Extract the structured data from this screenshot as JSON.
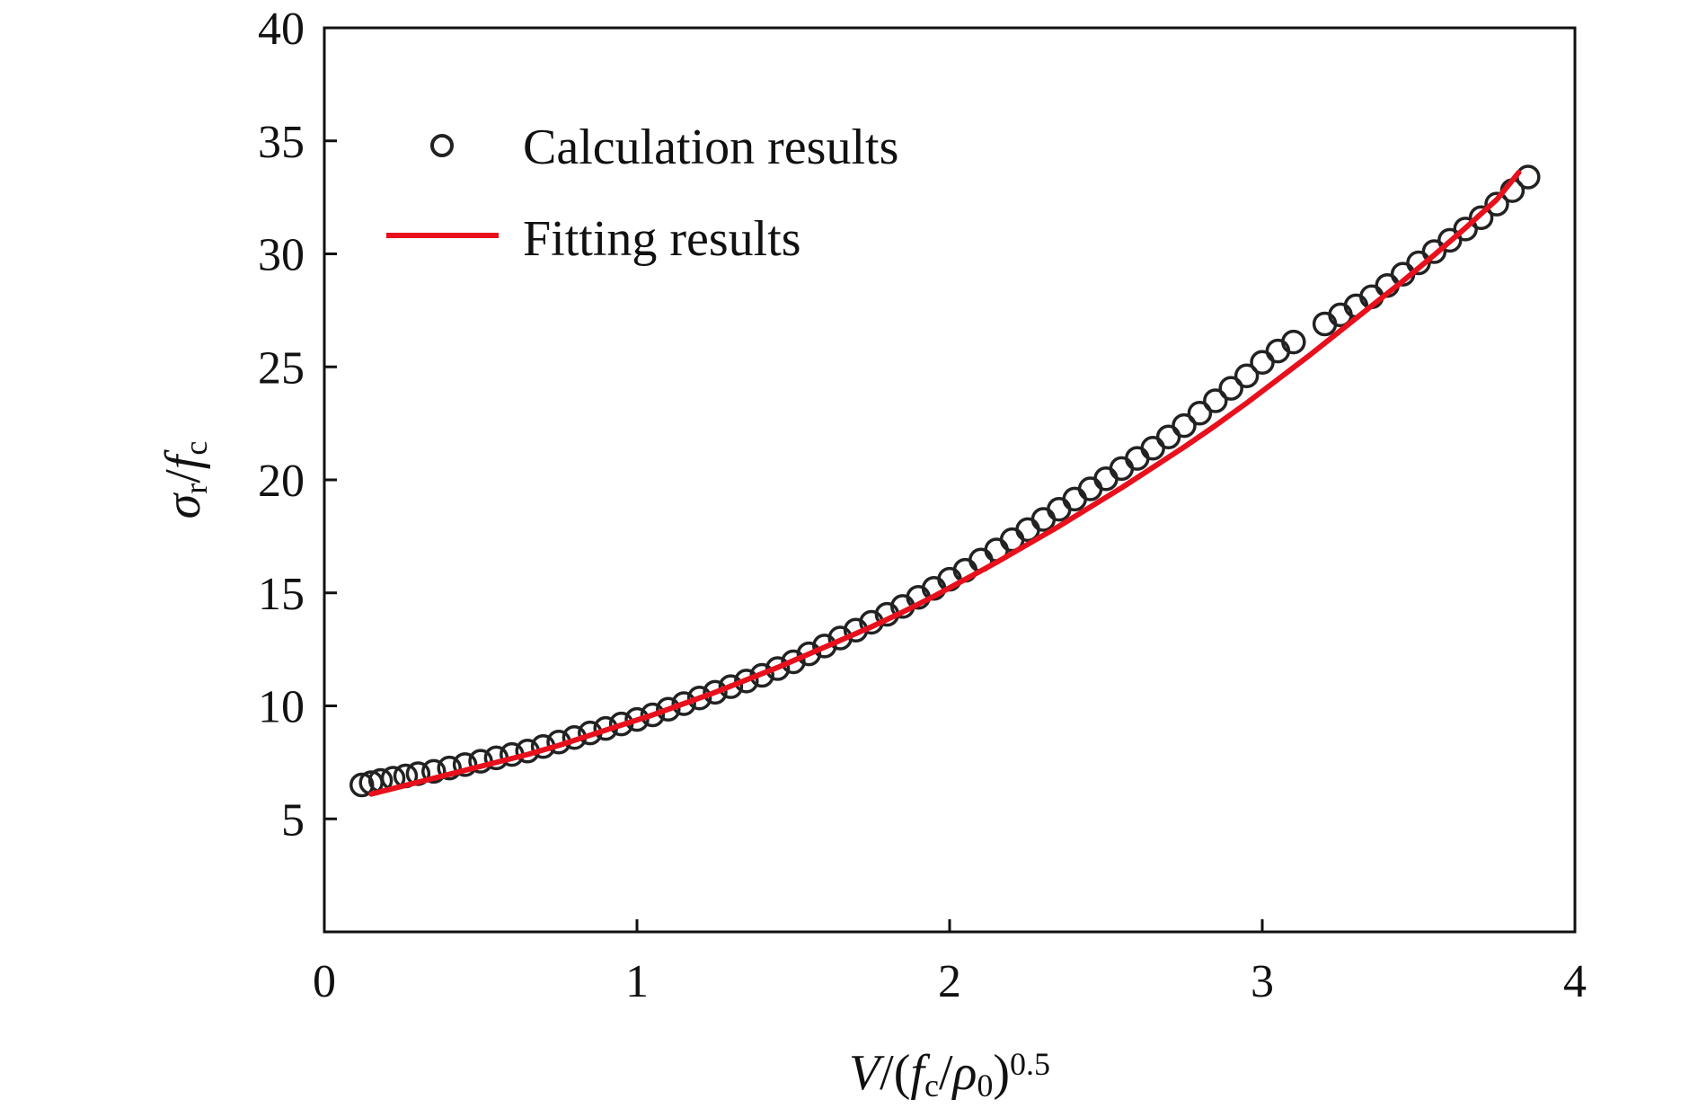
{
  "chart_data": {
    "type": "scatter",
    "title": "",
    "xlabel": {
      "parts": [
        {
          "text": "V",
          "style": "italic"
        },
        {
          "text": "/(",
          "style": "normal"
        },
        {
          "text": "f",
          "style": "italic"
        },
        {
          "text": "c",
          "style": "sub"
        },
        {
          "text": "/",
          "style": "normal"
        },
        {
          "text": "ρ",
          "style": "italic"
        },
        {
          "text": "0",
          "style": "sub"
        },
        {
          "text": ")",
          "style": "normal"
        },
        {
          "text": "0.5",
          "style": "sup"
        }
      ]
    },
    "ylabel": {
      "parts": [
        {
          "text": "σ",
          "style": "italic"
        },
        {
          "text": "r",
          "style": "sub"
        },
        {
          "text": "/",
          "style": "normal"
        },
        {
          "text": "f",
          "style": "italic"
        },
        {
          "text": "c",
          "style": "sub"
        }
      ]
    },
    "xlim": [
      0,
      4
    ],
    "ylim": [
      0,
      40
    ],
    "xticks": [
      0,
      1,
      2,
      3,
      4
    ],
    "yticks": [
      5,
      10,
      15,
      20,
      25,
      30,
      35,
      40
    ],
    "grid": false,
    "legend_position": "top-left",
    "series": [
      {
        "name": "Calculation results",
        "kind": "scatter",
        "marker": "open-circle",
        "color": "#222222",
        "x": [
          0.12,
          0.15,
          0.18,
          0.22,
          0.26,
          0.3,
          0.35,
          0.4,
          0.45,
          0.5,
          0.55,
          0.6,
          0.65,
          0.7,
          0.75,
          0.8,
          0.85,
          0.9,
          0.95,
          1.0,
          1.05,
          1.1,
          1.15,
          1.2,
          1.25,
          1.3,
          1.35,
          1.4,
          1.45,
          1.5,
          1.55,
          1.6,
          1.65,
          1.7,
          1.75,
          1.8,
          1.85,
          1.9,
          1.95,
          2.0,
          2.05,
          2.1,
          2.15,
          2.2,
          2.25,
          2.3,
          2.35,
          2.4,
          2.45,
          2.5,
          2.55,
          2.6,
          2.65,
          2.7,
          2.75,
          2.8,
          2.85,
          2.9,
          2.95,
          3.0,
          3.05,
          3.1,
          3.2,
          3.25,
          3.3,
          3.35,
          3.4,
          3.45,
          3.5,
          3.55,
          3.6,
          3.65,
          3.7,
          3.75,
          3.8,
          3.85
        ],
        "y": [
          6.5,
          6.6,
          6.7,
          6.8,
          6.9,
          7.0,
          7.1,
          7.25,
          7.4,
          7.55,
          7.7,
          7.85,
          8.0,
          8.2,
          8.4,
          8.6,
          8.8,
          9.0,
          9.2,
          9.4,
          9.6,
          9.85,
          10.1,
          10.35,
          10.6,
          10.85,
          11.1,
          11.35,
          11.65,
          11.95,
          12.3,
          12.65,
          13.0,
          13.35,
          13.7,
          14.05,
          14.4,
          14.8,
          15.2,
          15.6,
          16.0,
          16.45,
          16.9,
          17.35,
          17.8,
          18.25,
          18.7,
          19.15,
          19.6,
          20.05,
          20.5,
          20.95,
          21.4,
          21.9,
          22.4,
          22.95,
          23.5,
          24.05,
          24.6,
          25.2,
          25.7,
          26.1,
          26.9,
          27.3,
          27.7,
          28.1,
          28.6,
          29.1,
          29.6,
          30.1,
          30.6,
          31.1,
          31.6,
          32.2,
          32.8,
          33.4
        ]
      },
      {
        "name": "Fitting results",
        "kind": "line",
        "color": "#e8101c",
        "x": [
          0.15,
          0.25,
          0.35,
          0.45,
          0.55,
          0.65,
          0.75,
          0.85,
          0.95,
          1.05,
          1.15,
          1.25,
          1.35,
          1.45,
          1.55,
          1.65,
          1.75,
          1.85,
          1.95,
          2.05,
          2.15,
          2.25,
          2.35,
          2.45,
          2.55,
          2.65,
          2.75,
          2.85,
          2.95,
          3.05,
          3.15,
          3.25,
          3.35,
          3.45,
          3.55,
          3.65,
          3.75,
          3.82
        ],
        "y": [
          6.1,
          6.45,
          6.8,
          7.15,
          7.5,
          7.85,
          8.25,
          8.7,
          9.15,
          9.6,
          10.1,
          10.6,
          11.15,
          11.7,
          12.3,
          12.9,
          13.5,
          14.15,
          14.85,
          15.6,
          16.35,
          17.15,
          17.95,
          18.8,
          19.65,
          20.55,
          21.45,
          22.4,
          23.4,
          24.45,
          25.5,
          26.6,
          27.7,
          28.8,
          29.95,
          31.15,
          32.4,
          33.6
        ]
      }
    ]
  }
}
